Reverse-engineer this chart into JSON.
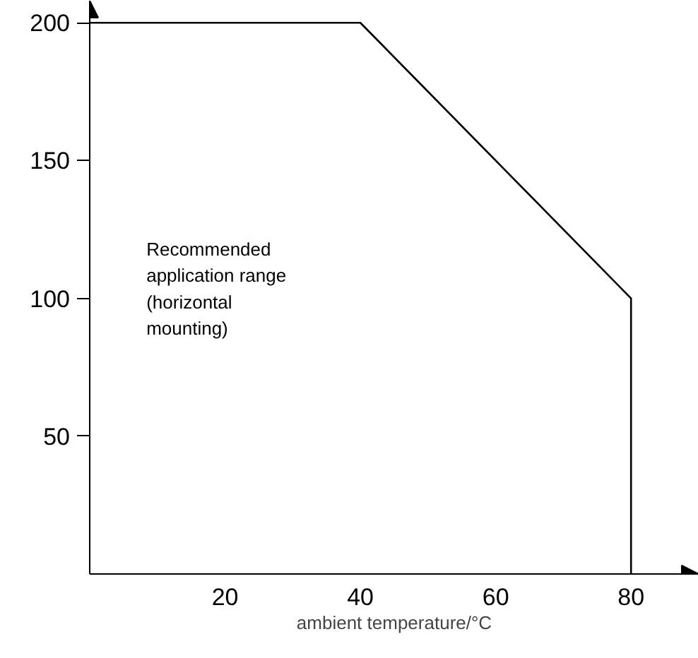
{
  "chart_data": {
    "type": "line",
    "x": [
      0,
      40,
      80,
      80
    ],
    "series": [
      {
        "color": "#000000",
        "values": [
          200,
          200,
          100,
          0
        ]
      }
    ],
    "xlabel": "ambient temperature/°C",
    "xlim": [
      0,
      90
    ],
    "xticks": [
      20,
      40,
      60,
      80
    ],
    "ylim": [
      0,
      208
    ],
    "yticks": [
      50,
      100,
      150,
      200
    ],
    "annotations": [
      "Recommended\napplication range\n(horizontal\nmounting)"
    ],
    "grid": false,
    "marker": "none",
    "line_style": "solid"
  }
}
